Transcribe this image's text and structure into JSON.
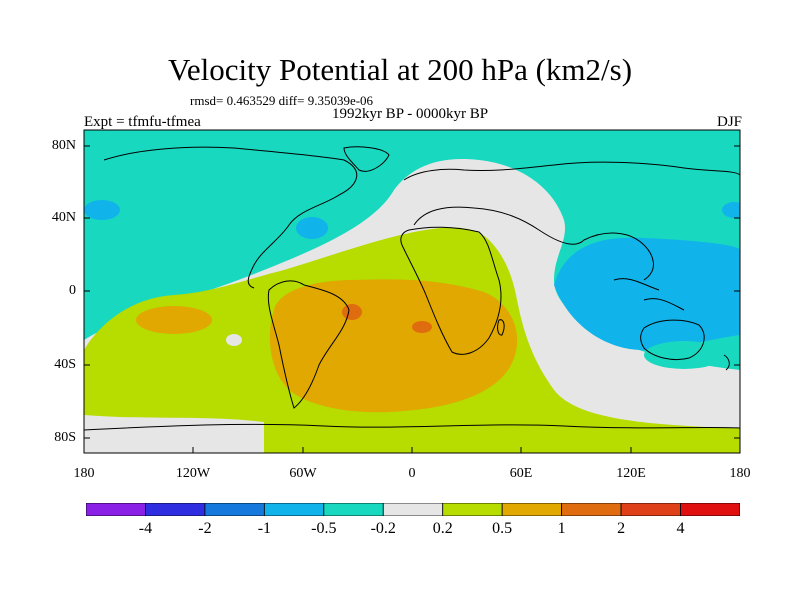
{
  "title": "Velocity Potential at 200 hPa (km2/s)",
  "stats": "rmsd= 0.463529 diff= 9.35039e-06",
  "expt": "Expt = tfmfu-tfmea",
  "period": "1992kyr BP - 0000kyr BP",
  "season": "DJF",
  "y_ticks": [
    "80N",
    "40N",
    "0",
    "40S",
    "80S"
  ],
  "x_ticks": [
    "180",
    "120W",
    "60W",
    "0",
    "60E",
    "120E",
    "180"
  ],
  "colorbar": {
    "labels": [
      "-4",
      "-2",
      "-1",
      "-0.5",
      "-0.2",
      "0.2",
      "0.5",
      "1",
      "2",
      "4"
    ],
    "colors": [
      "#8a1fe6",
      "#2e2ee0",
      "#1578dc",
      "#10b4ea",
      "#18d8c0",
      "#e6e6e6",
      "#b6dc00",
      "#e0a800",
      "#e06c10",
      "#e04018",
      "#e01010"
    ]
  },
  "map_colors": {
    "ocean_ring_low": "#18d8c0",
    "blue_low": "#10b4ea",
    "neutral": "#e6e6e6",
    "green_high": "#b6dc00",
    "orange_high": "#e0a800",
    "dark_orange": "#e06c10"
  }
}
